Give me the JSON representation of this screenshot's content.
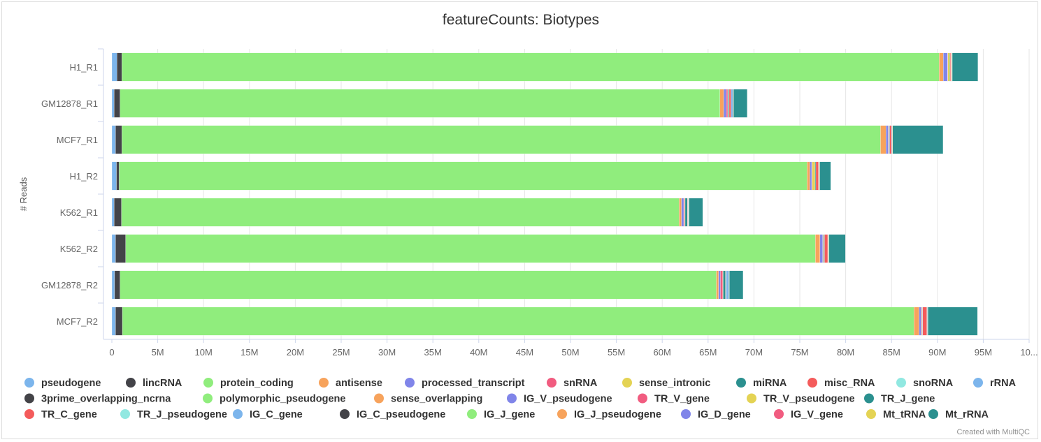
{
  "chart_data": {
    "type": "bar",
    "orientation": "horizontal",
    "stacked": true,
    "title": "featureCounts: Biotypes",
    "ylabel": "# Reads",
    "xlim": [
      0,
      100000000
    ],
    "x_ticks": [
      "0",
      "5M",
      "10M",
      "15M",
      "20M",
      "25M",
      "30M",
      "35M",
      "40M",
      "45M",
      "50M",
      "55M",
      "60M",
      "65M",
      "70M",
      "75M",
      "80M",
      "85M",
      "90M",
      "95M",
      "10..."
    ],
    "grid": true,
    "legend_position": "bottom",
    "categories": [
      "H1_R1",
      "GM12878_R1",
      "MCF7_R1",
      "H1_R2",
      "K562_R1",
      "K562_R2",
      "GM12878_R2",
      "MCF7_R2"
    ],
    "series": [
      {
        "name": "pseudogene",
        "color": "#7cb5ec",
        "values": [
          0.55,
          0.25,
          0.4,
          0.5,
          0.25,
          0.4,
          0.3,
          0.4
        ]
      },
      {
        "name": "lincRNA",
        "color": "#434348",
        "values": [
          0.55,
          0.65,
          0.7,
          0.3,
          0.8,
          1.1,
          0.6,
          0.75
        ]
      },
      {
        "name": "protein_coding",
        "color": "#90ed7d",
        "values": [
          89.1,
          65.4,
          82.7,
          75.0,
          60.8,
          75.2,
          65.0,
          86.3
        ]
      },
      {
        "name": "antisense",
        "color": "#f7a35c",
        "values": [
          0.45,
          0.4,
          0.6,
          0.3,
          0.25,
          0.5,
          0.25,
          0.55
        ]
      },
      {
        "name": "processed_transcript",
        "color": "#8085e9",
        "values": [
          0.45,
          0.3,
          0.25,
          0.2,
          0.25,
          0.3,
          0.2,
          0.25
        ]
      },
      {
        "name": "snRNA",
        "color": "#f15c80",
        "values": [
          0.05,
          0.15,
          0.05,
          0.05,
          0.1,
          0.05,
          0.25,
          0.05
        ]
      },
      {
        "name": "sense_intronic",
        "color": "#e4d354",
        "values": [
          0.2,
          0.05,
          0.05,
          0.3,
          0.05,
          0.05,
          0.05,
          0.05
        ]
      },
      {
        "name": "miRNA",
        "color": "#2b908f",
        "values": [
          0.05,
          0.1,
          0.05,
          0.1,
          0.25,
          0.1,
          0.25,
          0.05
        ]
      },
      {
        "name": "misc_RNA",
        "color": "#f45b5b",
        "values": [
          0.1,
          0.2,
          0.2,
          0.3,
          0.05,
          0.35,
          0.05,
          0.45
        ]
      },
      {
        "name": "snoRNA",
        "color": "#91e8e1",
        "values": [
          0.02,
          0.02,
          0.02,
          0.02,
          0.02,
          0.02,
          0.02,
          0.02
        ]
      },
      {
        "name": "rRNA",
        "color": "#7cb5ec",
        "values": [
          0.05,
          0.2,
          0.05,
          0.05,
          0.05,
          0.05,
          0.3,
          0.05
        ]
      },
      {
        "name": "3prime_overlapping_ncrna",
        "color": "#434348",
        "values": [
          0,
          0,
          0,
          0,
          0,
          0,
          0,
          0
        ]
      },
      {
        "name": "polymorphic_pseudogene",
        "color": "#90ed7d",
        "values": [
          0,
          0,
          0,
          0,
          0,
          0,
          0,
          0
        ]
      },
      {
        "name": "sense_overlapping",
        "color": "#f7a35c",
        "values": [
          0,
          0,
          0,
          0,
          0,
          0,
          0,
          0
        ]
      },
      {
        "name": "IG_V_pseudogene",
        "color": "#8085e9",
        "values": [
          0,
          0,
          0,
          0,
          0,
          0,
          0,
          0
        ]
      },
      {
        "name": "TR_V_gene",
        "color": "#f15c80",
        "values": [
          0,
          0,
          0,
          0,
          0,
          0,
          0,
          0
        ]
      },
      {
        "name": "TR_V_pseudogene",
        "color": "#e4d354",
        "values": [
          0,
          0,
          0,
          0,
          0,
          0,
          0,
          0
        ]
      },
      {
        "name": "TR_J_gene",
        "color": "#2b908f",
        "values": [
          0,
          0,
          0,
          0,
          0,
          0,
          0,
          0
        ]
      },
      {
        "name": "TR_C_gene",
        "color": "#f45b5b",
        "values": [
          0,
          0,
          0,
          0,
          0,
          0,
          0,
          0
        ]
      },
      {
        "name": "TR_J_pseudogene",
        "color": "#91e8e1",
        "values": [
          0,
          0,
          0,
          0,
          0,
          0,
          0,
          0
        ]
      },
      {
        "name": "IG_C_gene",
        "color": "#7cb5ec",
        "values": [
          0,
          0,
          0,
          0,
          0,
          0,
          0,
          0
        ]
      },
      {
        "name": "IG_C_pseudogene",
        "color": "#434348",
        "values": [
          0,
          0,
          0,
          0,
          0,
          0,
          0,
          0
        ]
      },
      {
        "name": "IG_J_gene",
        "color": "#90ed7d",
        "values": [
          0,
          0,
          0,
          0,
          0,
          0,
          0,
          0
        ]
      },
      {
        "name": "IG_J_pseudogene",
        "color": "#f7a35c",
        "values": [
          0,
          0,
          0,
          0,
          0,
          0,
          0,
          0
        ]
      },
      {
        "name": "IG_D_gene",
        "color": "#8085e9",
        "values": [
          0,
          0,
          0,
          0,
          0,
          0,
          0,
          0
        ]
      },
      {
        "name": "IG_V_gene",
        "color": "#f15c80",
        "values": [
          0,
          0,
          0,
          0,
          0,
          0,
          0,
          0
        ]
      },
      {
        "name": "Mt_tRNA",
        "color": "#e4d354",
        "values": [
          0.05,
          0.05,
          0.05,
          0.05,
          0.05,
          0.05,
          0.05,
          0.05
        ]
      },
      {
        "name": "Mt_rRNA",
        "color": "#2b908f",
        "values": [
          2.8,
          1.5,
          5.5,
          1.2,
          1.5,
          1.8,
          1.5,
          5.4
        ]
      }
    ],
    "value_unit": "millions of reads"
  },
  "credit": "Created with MultiQC"
}
